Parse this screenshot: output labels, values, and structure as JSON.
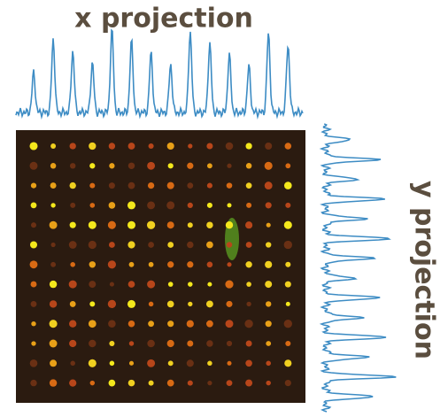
{
  "labels": {
    "x_projection": "x projection",
    "y_projection": "y projection"
  }
}
